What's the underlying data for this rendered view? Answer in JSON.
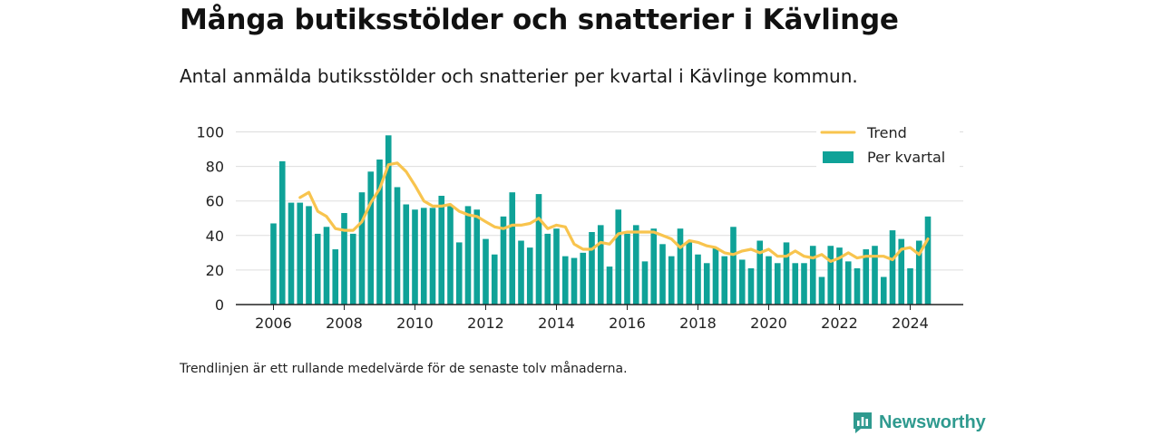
{
  "title": "Många butiksstölder och snatterier i Kävlinge",
  "subtitle": "Antal anmälda butiksstölder och snatterier per kvartal i Kävlinge kommun.",
  "note": "Trendlinjen är ett rullande medelvärde för de senaste tolv månaderna.",
  "brand": "Newsworthy",
  "colors": {
    "bar": "#0fa298",
    "trend": "#f8c44e",
    "grid": "#dddddd",
    "axis": "#222222",
    "brand": "#2f9a8f"
  },
  "chart_data": {
    "type": "bar",
    "x_start": 2006,
    "x_step": 0.25,
    "xticks": [
      2006,
      2008,
      2010,
      2012,
      2014,
      2016,
      2018,
      2020,
      2022,
      2024
    ],
    "yticks": [
      0,
      20,
      40,
      60,
      80,
      100
    ],
    "ylim": [
      0,
      100
    ],
    "legend_position": "top-right",
    "grid": true,
    "series": [
      {
        "name": "Per kvartal",
        "type": "bar",
        "values": [
          47,
          83,
          59,
          59,
          57,
          41,
          45,
          32,
          53,
          41,
          65,
          77,
          84,
          98,
          68,
          58,
          55,
          56,
          56,
          63,
          57,
          36,
          57,
          55,
          38,
          29,
          51,
          65,
          37,
          33,
          64,
          41,
          44,
          28,
          27,
          30,
          42,
          46,
          22,
          55,
          41,
          46,
          25,
          44,
          35,
          28,
          44,
          36,
          29,
          24,
          33,
          28,
          45,
          26,
          21,
          37,
          28,
          24,
          36,
          24,
          24,
          34,
          16,
          34,
          33,
          25,
          21,
          32,
          34,
          16,
          43,
          38,
          21,
          37,
          51
        ]
      },
      {
        "name": "Trend",
        "type": "line",
        "x": [
          2006.75,
          2007.0,
          2007.25,
          2007.5,
          2007.75,
          2008.0,
          2008.25,
          2008.5,
          2008.75,
          2009.0,
          2009.25,
          2009.5,
          2009.75,
          2010.0,
          2010.25,
          2010.5,
          2010.75,
          2011.0,
          2011.25,
          2011.5,
          2011.75,
          2012.0,
          2012.25,
          2012.5,
          2012.75,
          2013.0,
          2013.25,
          2013.5,
          2013.75,
          2014.0,
          2014.25,
          2014.5,
          2014.75,
          2015.0,
          2015.25,
          2015.5,
          2015.75,
          2016.0,
          2016.25,
          2016.5,
          2016.75,
          2017.0,
          2017.25,
          2017.5,
          2017.75,
          2018.0,
          2018.25,
          2018.5,
          2018.75,
          2019.0,
          2019.25,
          2019.5,
          2019.75,
          2020.0,
          2020.25,
          2020.5,
          2020.75,
          2021.0,
          2021.25,
          2021.5,
          2021.75,
          2022.0,
          2022.25,
          2022.5,
          2022.75,
          2023.0,
          2023.25,
          2023.5,
          2023.75,
          2024.0,
          2024.25,
          2024.5
        ],
        "values": [
          62,
          65,
          54,
          51,
          44,
          43,
          43,
          48,
          59,
          67,
          81,
          82,
          77,
          69,
          60,
          57,
          57,
          58,
          54,
          52,
          51,
          48,
          45,
          44,
          46,
          46,
          47,
          50,
          44,
          46,
          45,
          35,
          32,
          32,
          36,
          35,
          41,
          42,
          42,
          42,
          42,
          40,
          38,
          33,
          37,
          36,
          34,
          33,
          30,
          29,
          31,
          32,
          30,
          32,
          28,
          28,
          31,
          28,
          27,
          29,
          25,
          27,
          30,
          27,
          28,
          28,
          28,
          26,
          32,
          33,
          29,
          38
        ]
      }
    ]
  }
}
